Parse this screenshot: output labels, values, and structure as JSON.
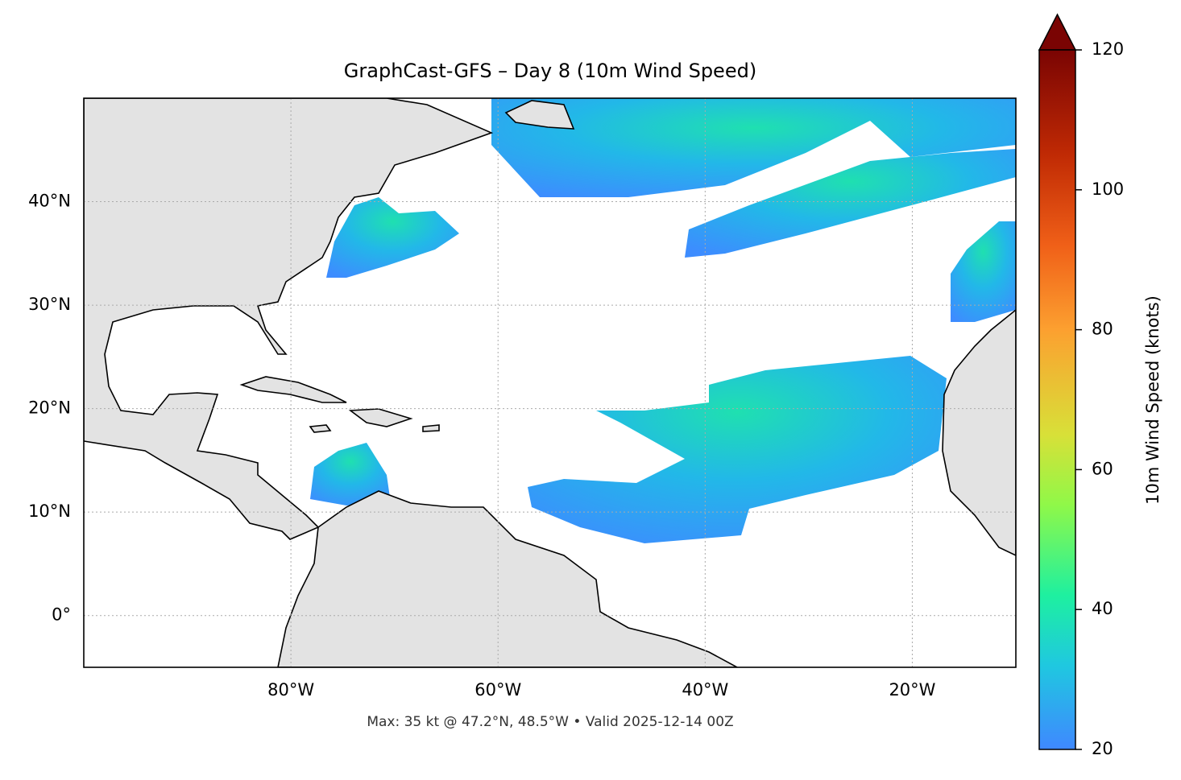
{
  "title": "GraphCast-GFS – Day 8 (10m Wind Speed)",
  "footer": "Max: 35 kt @ 47.2°N, 48.5°W • Valid 2025-12-14 00Z",
  "map": {
    "lonlim": [
      -100,
      -10
    ],
    "latlim": [
      -5,
      50
    ],
    "lonticks": [
      {
        "value": -80,
        "label": "80°W"
      },
      {
        "value": -60,
        "label": "60°W"
      },
      {
        "value": -40,
        "label": "40°W"
      },
      {
        "value": -20,
        "label": "20°W"
      }
    ],
    "latticks": [
      {
        "value": 0,
        "label": "0°"
      },
      {
        "value": 10,
        "label": "10°N"
      },
      {
        "value": 20,
        "label": "20°N"
      },
      {
        "value": 30,
        "label": "30°N"
      },
      {
        "value": 40,
        "label": "40°N"
      }
    ]
  },
  "colorbar": {
    "label": "10m Wind Speed (knots)",
    "lim": [
      20,
      120
    ],
    "ticks": [
      20,
      40,
      60,
      80,
      100,
      120
    ]
  }
}
